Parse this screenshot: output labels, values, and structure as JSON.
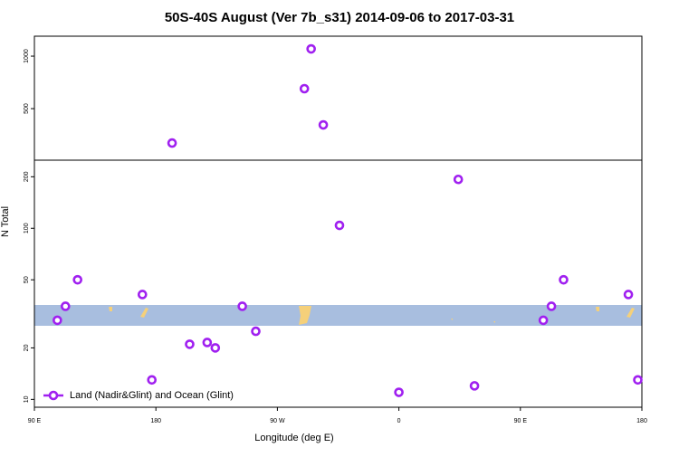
{
  "chart_data": [
    {
      "type": "scatter",
      "title": "50S-40S August (Ver 7b_s31)   2014-09-06 to 2017-03-31",
      "x": [
        295,
        290,
        304,
        192
      ],
      "values": [
        1069,
        690,
        345,
        172
      ],
      "color": "#a020f0",
      "xlim": [
        90,
        540
      ],
      "ylim": [
        9,
        1190
      ],
      "yticks": [
        500,
        1000
      ]
    },
    {
      "type": "scatter",
      "xlabel": "Longitude (deg E)",
      "ylabel": "N Total",
      "log_y": true,
      "xlim": [
        90,
        540
      ],
      "xticks": [
        {
          "value": 90,
          "label": "90 E"
        },
        {
          "value": 180,
          "label": "180"
        },
        {
          "value": 270,
          "label": "90 W"
        },
        {
          "value": 360,
          "label": "0"
        },
        {
          "value": 450,
          "label": "90 E"
        },
        {
          "value": 540,
          "label": "180"
        }
      ],
      "ylim": [
        9,
        250
      ],
      "yticks": [
        10,
        20,
        50,
        100,
        200
      ],
      "legend": "lower left",
      "series": [
        {
          "name": "Land (Nadir&Glint) and Ocean (Glint)",
          "color": "#a020f0",
          "x": [
            107,
            113,
            122,
            170,
            177,
            205,
            218,
            224,
            244,
            254,
            316,
            360,
            404,
            416,
            467,
            473,
            482,
            530,
            537
          ],
          "values": [
            29,
            35,
            50,
            41,
            13,
            21,
            21.5,
            20,
            35,
            25,
            104,
            11,
            193,
            12,
            29,
            35,
            50,
            41,
            13
          ]
        }
      ]
    }
  ]
}
